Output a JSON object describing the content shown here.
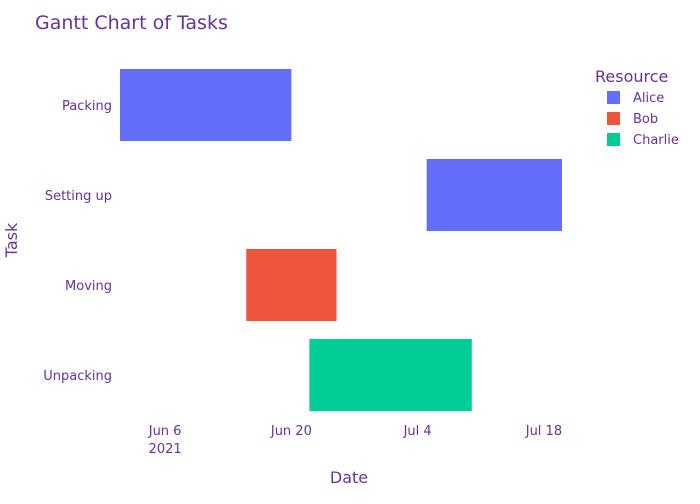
{
  "chart_data": {
    "type": "gantt",
    "title": "Gantt Chart of Tasks",
    "xlabel": "Date",
    "ylabel": "Task",
    "x_range": [
      "2021-06-01",
      "2021-07-22"
    ],
    "x_ticks": [
      {
        "date": "2021-06-06",
        "label": "Jun 6",
        "sublabel": "2021"
      },
      {
        "date": "2021-06-20",
        "label": "Jun 20",
        "sublabel": ""
      },
      {
        "date": "2021-07-04",
        "label": "Jul 4",
        "sublabel": ""
      },
      {
        "date": "2021-07-18",
        "label": "Jul 18",
        "sublabel": ""
      }
    ],
    "tasks": [
      {
        "task": "Packing",
        "start": "2021-06-01",
        "end": "2021-06-20",
        "resource": "Alice"
      },
      {
        "task": "Setting up",
        "start": "2021-07-05",
        "end": "2021-07-20",
        "resource": "Alice"
      },
      {
        "task": "Moving",
        "start": "2021-06-15",
        "end": "2021-06-25",
        "resource": "Bob"
      },
      {
        "task": "Unpacking",
        "start": "2021-06-22",
        "end": "2021-07-10",
        "resource": "Charlie"
      }
    ],
    "legend": {
      "title": "Resource",
      "placement": "top-right",
      "items": [
        {
          "name": "Alice",
          "color": "#636efa"
        },
        {
          "name": "Bob",
          "color": "#ef553b"
        },
        {
          "name": "Charlie",
          "color": "#00cc96"
        }
      ]
    },
    "colors": {
      "text": "#663399",
      "background": "#ffffff"
    }
  }
}
